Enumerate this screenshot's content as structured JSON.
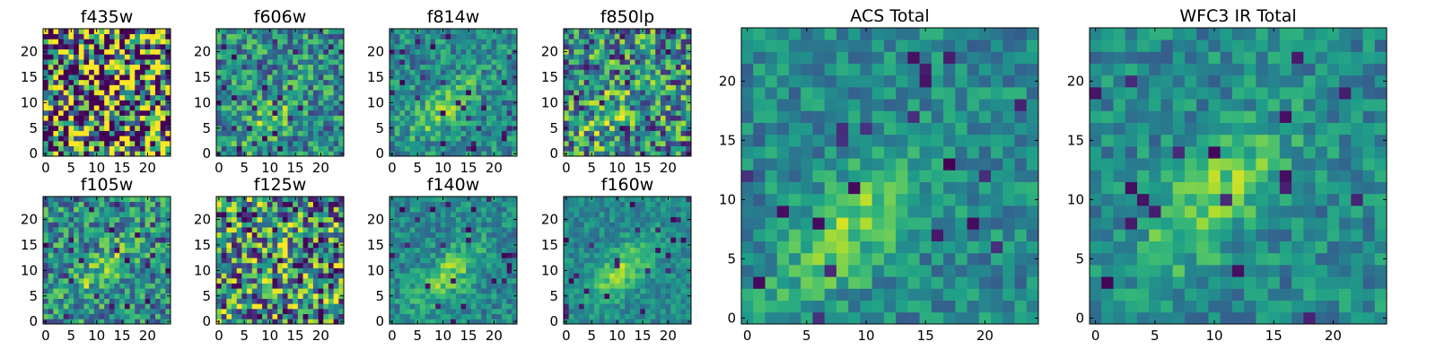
{
  "chart_data": [
    {
      "type": "heatmap",
      "title": "f435w",
      "grid_size": 25,
      "xticks": [
        0,
        5,
        10,
        15,
        20
      ],
      "yticks": [
        0,
        5,
        10,
        15,
        20
      ],
      "xlim": [
        0,
        24
      ],
      "ylim": [
        0,
        24
      ],
      "colormap": "viridis",
      "peak": null,
      "pattern_strength": 0.1,
      "noise": 0.85,
      "seed": 11
    },
    {
      "type": "heatmap",
      "title": "f606w",
      "grid_size": 25,
      "xticks": [
        0,
        5,
        10,
        15,
        20
      ],
      "yticks": [
        0,
        5,
        10,
        15,
        20
      ],
      "xlim": [
        0,
        24
      ],
      "ylim": [
        0,
        24
      ],
      "colormap": "viridis",
      "peak": [
        10,
        7
      ],
      "pattern_strength": 0.45,
      "noise": 0.55,
      "seed": 23
    },
    {
      "type": "heatmap",
      "title": "f814w",
      "grid_size": 25,
      "xticks": [
        0,
        5,
        10,
        15,
        20
      ],
      "yticks": [
        0,
        5,
        10,
        15,
        20
      ],
      "xlim": [
        0,
        24
      ],
      "ylim": [
        0,
        24
      ],
      "colormap": "viridis",
      "peak": [
        10,
        9
      ],
      "pattern_strength": 0.55,
      "noise": 0.5,
      "seed": 37
    },
    {
      "type": "heatmap",
      "title": "f850lp",
      "grid_size": 25,
      "xticks": [
        0,
        5,
        10,
        15,
        20
      ],
      "yticks": [
        0,
        5,
        10,
        15,
        20
      ],
      "xlim": [
        0,
        24
      ],
      "ylim": [
        0,
        24
      ],
      "colormap": "viridis",
      "peak": [
        9,
        8
      ],
      "pattern_strength": 0.35,
      "noise": 0.65,
      "seed": 41
    },
    {
      "type": "heatmap",
      "title": "f105w",
      "grid_size": 25,
      "xticks": [
        0,
        5,
        10,
        15,
        20
      ],
      "yticks": [
        0,
        5,
        10,
        15,
        20
      ],
      "xlim": [
        0,
        24
      ],
      "ylim": [
        0,
        24
      ],
      "colormap": "viridis",
      "peak": [
        11,
        10
      ],
      "pattern_strength": 0.45,
      "noise": 0.55,
      "seed": 53
    },
    {
      "type": "heatmap",
      "title": "f125w",
      "grid_size": 25,
      "xticks": [
        0,
        5,
        10,
        15,
        20
      ],
      "yticks": [
        0,
        5,
        10,
        15,
        20
      ],
      "xlim": [
        0,
        24
      ],
      "ylim": [
        0,
        24
      ],
      "colormap": "viridis",
      "peak": [
        10,
        10
      ],
      "pattern_strength": 0.25,
      "noise": 0.7,
      "seed": 67
    },
    {
      "type": "heatmap",
      "title": "f140w",
      "grid_size": 25,
      "xticks": [
        0,
        5,
        10,
        15,
        20
      ],
      "yticks": [
        0,
        5,
        10,
        15,
        20
      ],
      "xlim": [
        0,
        24
      ],
      "ylim": [
        0,
        24
      ],
      "colormap": "viridis",
      "peak": [
        11,
        9
      ],
      "pattern_strength": 0.6,
      "noise": 0.45,
      "seed": 71
    },
    {
      "type": "heatmap",
      "title": "f160w",
      "grid_size": 25,
      "xticks": [
        0,
        5,
        10,
        15,
        20
      ],
      "yticks": [
        0,
        5,
        10,
        15,
        20
      ],
      "xlim": [
        0,
        24
      ],
      "ylim": [
        0,
        24
      ],
      "colormap": "viridis",
      "peak": [
        11,
        10
      ],
      "pattern_strength": 0.65,
      "noise": 0.4,
      "seed": 83
    },
    {
      "type": "heatmap",
      "title": "ACS Total",
      "grid_size": 25,
      "xticks": [
        0,
        5,
        10,
        15,
        20
      ],
      "yticks": [
        0,
        5,
        10,
        15,
        20
      ],
      "xlim": [
        0,
        24
      ],
      "ylim": [
        0,
        24
      ],
      "colormap": "viridis",
      "peak": [
        9,
        8
      ],
      "pattern_strength": 0.6,
      "noise": 0.45,
      "seed": 97
    },
    {
      "type": "heatmap",
      "title": "WFC3 IR Total",
      "grid_size": 25,
      "xticks": [
        0,
        5,
        10,
        15,
        20
      ],
      "yticks": [
        0,
        5,
        10,
        15,
        20
      ],
      "xlim": [
        0,
        24
      ],
      "ylim": [
        0,
        24
      ],
      "colormap": "viridis",
      "peak": [
        10,
        10
      ],
      "pattern_strength": 0.6,
      "noise": 0.45,
      "seed": 101
    }
  ],
  "colors": {
    "viridis": [
      "#440154",
      "#482878",
      "#3e4989",
      "#31688e",
      "#26828e",
      "#1f9e89",
      "#35b779",
      "#6ece58",
      "#b5de2b",
      "#fde725"
    ]
  }
}
